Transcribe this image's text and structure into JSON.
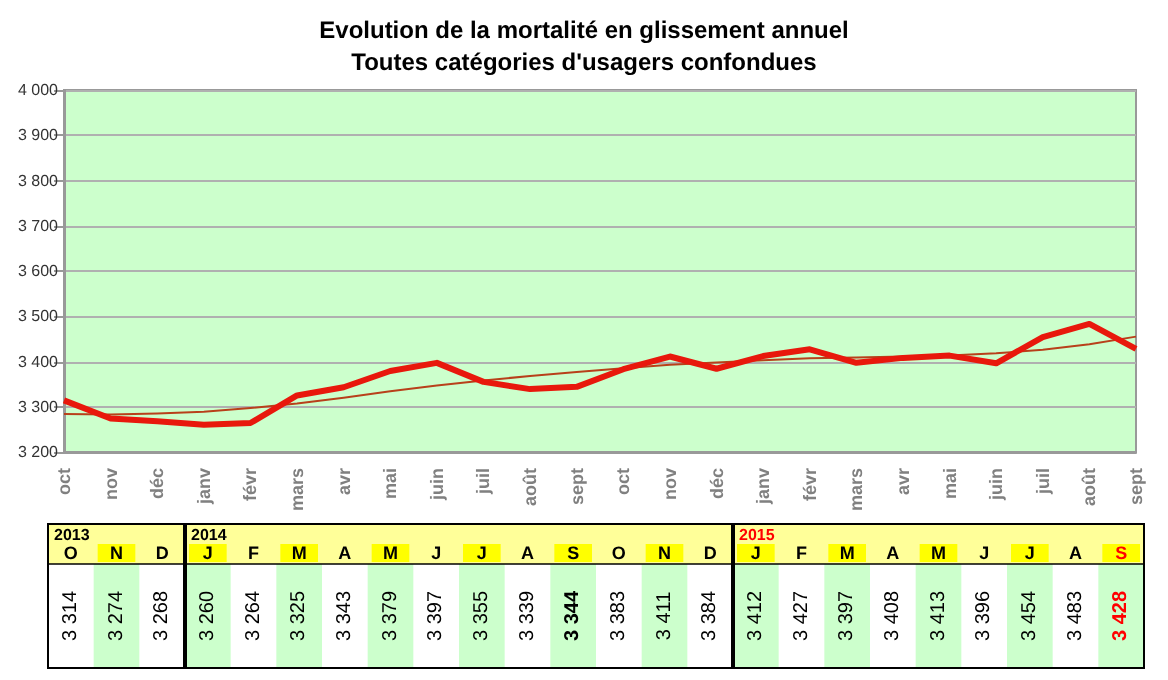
{
  "chart_data": {
    "type": "line",
    "title": "Evolution de la mortalité en glissement annuel",
    "subtitle": "Toutes catégories d'usagers confondues",
    "categories": [
      "oct",
      "nov",
      "déc",
      "janv",
      "févr",
      "mars",
      "avr",
      "mai",
      "juin",
      "juil",
      "août",
      "sept",
      "oct",
      "nov",
      "déc",
      "janv",
      "févr",
      "mars",
      "avr",
      "mai",
      "juin",
      "juil",
      "août",
      "sept"
    ],
    "series": [
      {
        "color": "#e8180c",
        "values": [
          3314,
          3274,
          3268,
          3260,
          3264,
          3325,
          3343,
          3379,
          3397,
          3355,
          3339,
          3344,
          3383,
          3411,
          3384,
          3412,
          3427,
          3397,
          3408,
          3413,
          3396,
          3454,
          3483,
          3428
        ],
        "value_labels": [
          "3 314",
          "3 274",
          "3 268",
          "3 260",
          "3 264",
          "3 325",
          "3 343",
          "3 379",
          "3 397",
          "3 355",
          "3 339",
          "3 344",
          "3 383",
          "3 411",
          "3 384",
          "3 412",
          "3 427",
          "3 397",
          "3 408",
          "3 413",
          "3 396",
          "3 454",
          "3 483",
          "3 428"
        ]
      },
      {
        "type": "line",
        "color": "#b8401a",
        "values": [
          3284,
          3283,
          3285,
          3289,
          3297,
          3307,
          3320,
          3334,
          3347,
          3358,
          3368,
          3377,
          3385,
          3393,
          3398,
          3403,
          3407,
          3409,
          3411,
          3413,
          3418,
          3426,
          3438,
          3455
        ]
      }
    ],
    "ylim": [
      3200,
      4000
    ],
    "yticks": [
      3200,
      3300,
      3400,
      3500,
      3600,
      3700,
      3800,
      3900,
      4000
    ],
    "grid": "y",
    "marker": "none",
    "annotations": [
      "2013",
      "2014",
      "2015",
      "O",
      "N",
      "D",
      "J",
      "F",
      "M",
      "A",
      "M",
      "J",
      "J",
      "A",
      "S",
      "O",
      "N",
      "D",
      "J",
      "F",
      "M",
      "A",
      "M",
      "J",
      "J",
      "A",
      "S"
    ]
  }
}
